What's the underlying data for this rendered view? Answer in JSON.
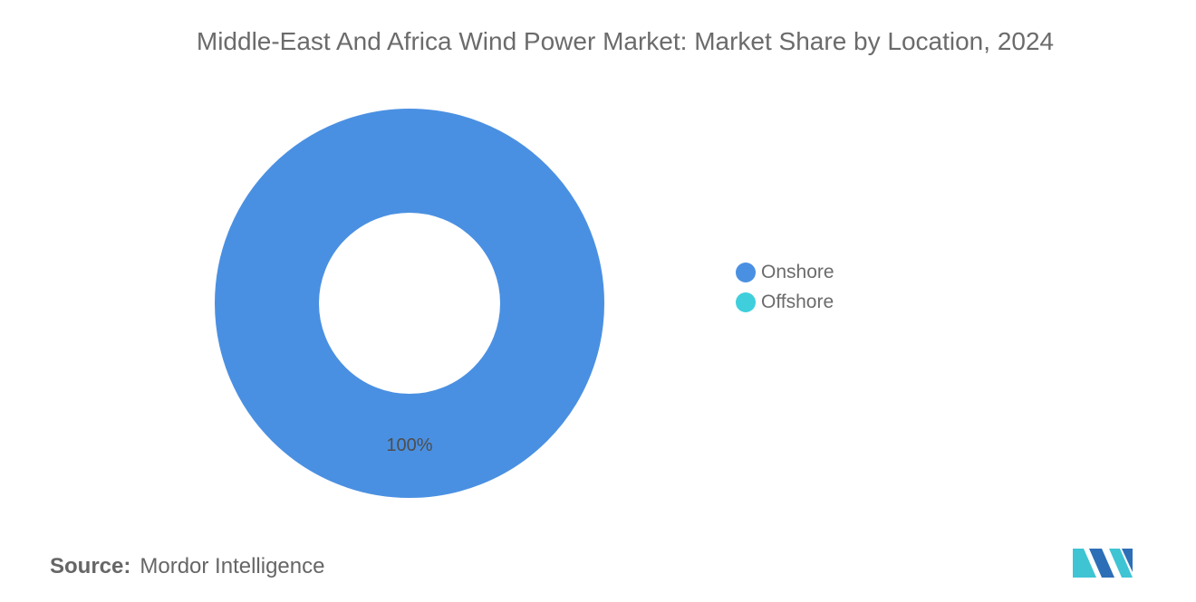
{
  "chart_data": {
    "type": "pie",
    "variant": "donut",
    "title": "Middle-East And Africa Wind Power Market: Market Share by Location, 2024",
    "categories": [
      "Onshore",
      "Offshore"
    ],
    "values": [
      100,
      0
    ],
    "data_labels": [
      "100%",
      ""
    ],
    "colors": [
      "#4a90e2",
      "#3fcfdc"
    ],
    "legend_position": "right"
  },
  "source": {
    "label": "Source:",
    "value": "Mordor Intelligence"
  },
  "colors": {
    "logo_dark": "#2d6fb7",
    "logo_light": "#3fc4d4"
  }
}
